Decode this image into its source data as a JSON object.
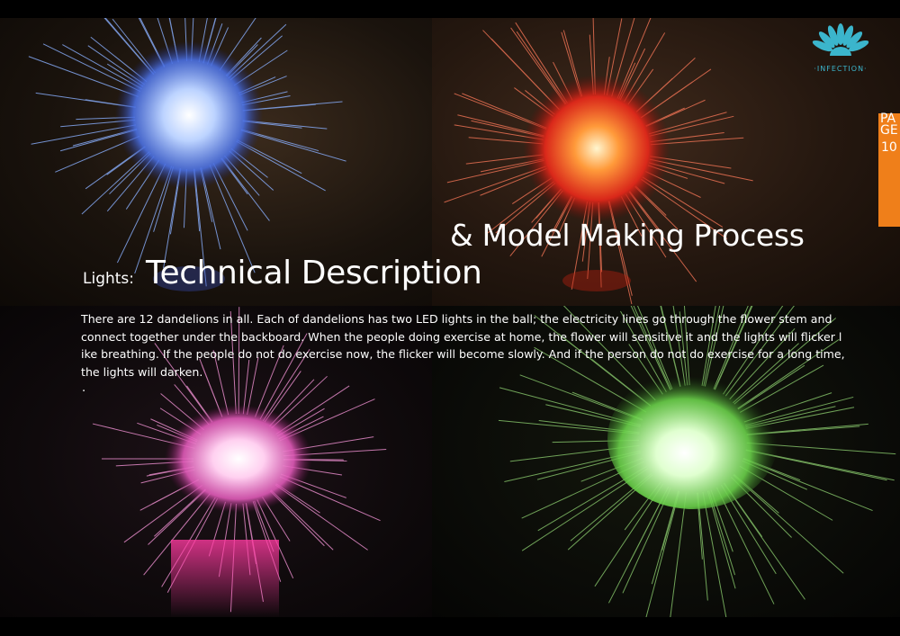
{
  "logo": {
    "text": "·INFECTION·",
    "icon": "dandelion-logo-icon",
    "color": "#3bb5cc"
  },
  "page_tab": {
    "word_line1": "PA",
    "word_line2": "GE",
    "number": "10",
    "color": "#ef7f1a"
  },
  "heading": {
    "label": "Lights:",
    "title": "Technical Description",
    "subtitle": "& Model Making Process"
  },
  "body": {
    "paragraph": "There are 12 dandelions in all. Each of dandelions has two LED lights in the ball; the electricity lines go through the flower stem and connect together under the backboard. When the people doing exercise at home, the flower will sensitive it and the lights will flicker l ike breathing. If the people do not do exercise now, the flicker will become slowly. And if the person do not do exercise for a long time, the lights will darken.",
    "trailing_dot": "."
  },
  "photos": [
    {
      "name": "blue-light-photo",
      "color": "#6fa3ff"
    },
    {
      "name": "red-light-photo",
      "color": "#ff3b1e"
    },
    {
      "name": "pink-light-photo",
      "color": "#ff5fd0"
    },
    {
      "name": "green-light-photo",
      "color": "#7dff5a"
    }
  ]
}
